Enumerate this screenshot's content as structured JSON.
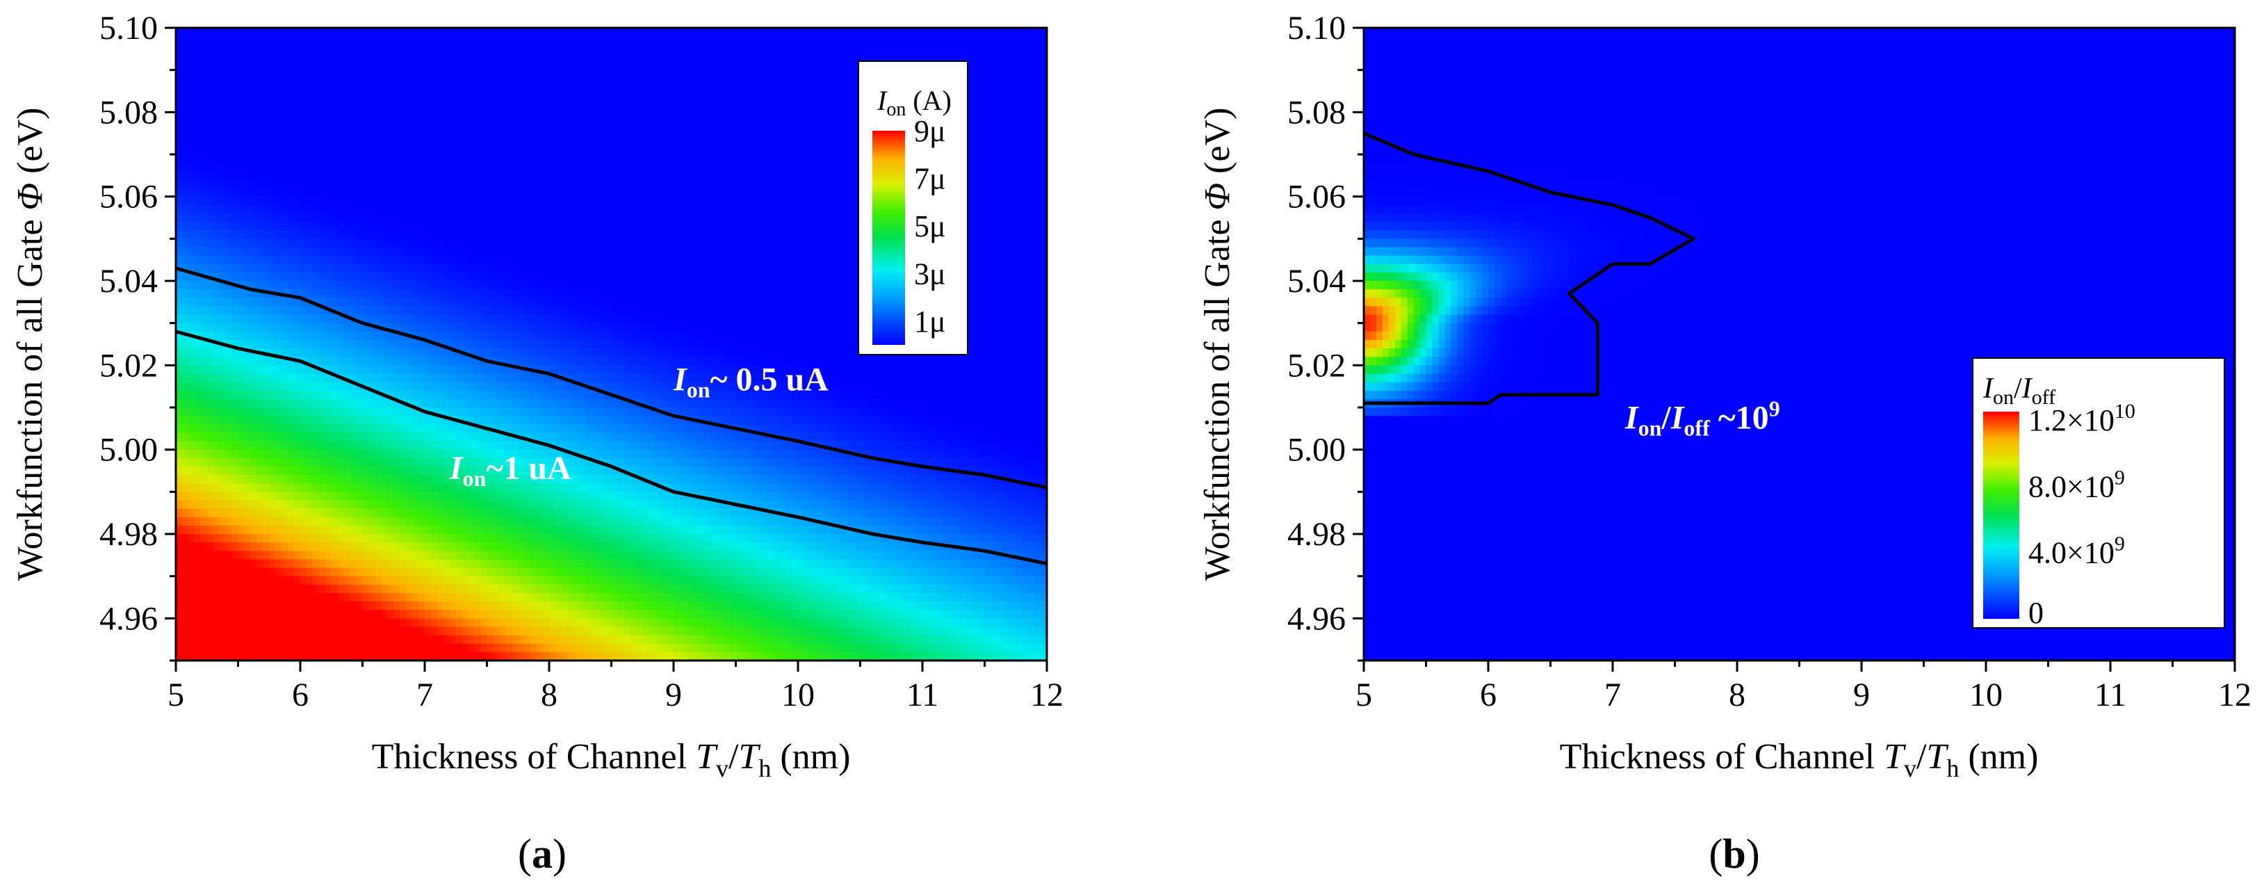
{
  "chart_data": [
    {
      "type": "heatmap",
      "panel_label": "a",
      "xlabel": {
        "prefix": "Thickness of Channel ",
        "t1": "T",
        "s1": "v",
        "slash": "/",
        "t2": "T",
        "s2": "h",
        "suffix": " (nm)"
      },
      "ylabel": {
        "prefix": "Workfunction of all Gate ",
        "sym": "Φ",
        "suffix": " (eV)"
      },
      "xlim": [
        5,
        12
      ],
      "ylim": [
        4.95,
        5.1
      ],
      "x_ticks": [
        "5",
        "6",
        "7",
        "8",
        "9",
        "10",
        "11",
        "12"
      ],
      "y_ticks": [
        "4.96",
        "4.98",
        "5.00",
        "5.02",
        "5.04",
        "5.06",
        "5.08",
        "5.10"
      ],
      "colorbar": {
        "title": {
          "sym": "I",
          "sub": "on",
          "unit": " (A)"
        },
        "range": [
          0,
          9
        ],
        "labels": [
          {
            "v": 9,
            "t": "9μ"
          },
          {
            "v": 7,
            "t": "7μ"
          },
          {
            "v": 5,
            "t": "5μ"
          },
          {
            "v": 3,
            "t": "3μ"
          },
          {
            "v": 1,
            "t": "1μ"
          }
        ]
      },
      "contours": [
        {
          "level": "0.5 uA",
          "points": [
            [
              5.0,
              5.043
            ],
            [
              5.6,
              5.038
            ],
            [
              6.0,
              5.036
            ],
            [
              6.5,
              5.03
            ],
            [
              7.0,
              5.026
            ],
            [
              7.5,
              5.021
            ],
            [
              8.0,
              5.018
            ],
            [
              8.5,
              5.013
            ],
            [
              9.0,
              5.008
            ],
            [
              9.5,
              5.005
            ],
            [
              10.0,
              5.002
            ],
            [
              10.6,
              4.998
            ],
            [
              11.0,
              4.996
            ],
            [
              11.5,
              4.994
            ],
            [
              12.0,
              4.991
            ]
          ]
        },
        {
          "level": "1 uA",
          "points": [
            [
              5.0,
              5.028
            ],
            [
              5.5,
              5.024
            ],
            [
              6.0,
              5.021
            ],
            [
              6.5,
              5.015
            ],
            [
              7.0,
              5.009
            ],
            [
              7.5,
              5.005
            ],
            [
              8.0,
              5.001
            ],
            [
              8.5,
              4.996
            ],
            [
              9.0,
              4.99
            ],
            [
              9.5,
              4.987
            ],
            [
              10.0,
              4.984
            ],
            [
              10.6,
              4.98
            ],
            [
              11.0,
              4.978
            ],
            [
              11.5,
              4.976
            ],
            [
              12.0,
              4.973
            ]
          ]
        }
      ],
      "annotations": [
        {
          "sym": "I",
          "sub": "on",
          "text": "~ 0.5 uA",
          "at": [
            9.0,
            5.014
          ]
        },
        {
          "sym": "I",
          "sub": "on",
          "text": "~1 uA",
          "at": [
            7.2,
            4.993
          ]
        }
      ]
    },
    {
      "type": "heatmap",
      "panel_label": "b",
      "xlabel": {
        "prefix": "Thickness of Channel ",
        "t1": "T",
        "s1": "v",
        "slash": "/",
        "t2": "T",
        "s2": "h",
        "suffix": " (nm)"
      },
      "ylabel": {
        "prefix": "Workfunction of all Gate ",
        "sym": "Φ",
        "suffix": " (eV)"
      },
      "xlim": [
        5,
        12
      ],
      "ylim": [
        4.95,
        5.1
      ],
      "x_ticks": [
        "5",
        "6",
        "7",
        "8",
        "9",
        "10",
        "11",
        "12"
      ],
      "y_ticks": [
        "4.96",
        "4.98",
        "5.00",
        "5.02",
        "5.04",
        "5.06",
        "5.08",
        "5.10"
      ],
      "colorbar": {
        "title": {
          "s1": "I",
          "b1": "on",
          "slash": "/",
          "s2": "I",
          "b2": "off"
        },
        "range": [
          0,
          12.5
        ],
        "labels": [
          {
            "v": 12,
            "m": "1.2×10",
            "e": "10"
          },
          {
            "v": 8,
            "m": "8.0×10",
            "e": "9"
          },
          {
            "v": 4,
            "m": "4.0×10",
            "e": "9"
          },
          {
            "v": 0,
            "m": "0",
            "e": ""
          }
        ]
      },
      "peak": {
        "x": 5.0,
        "y": 5.03,
        "value": 12.2
      },
      "contours": [
        {
          "level": "10^9",
          "points": [
            [
              5.0,
              5.075
            ],
            [
              5.4,
              5.07
            ],
            [
              6.0,
              5.066
            ],
            [
              6.5,
              5.061
            ],
            [
              7.0,
              5.058
            ],
            [
              7.3,
              5.055
            ],
            [
              7.65,
              5.05
            ],
            [
              7.3,
              5.044
            ],
            [
              7.0,
              5.044
            ],
            [
              6.65,
              5.037
            ],
            [
              6.88,
              5.03
            ],
            [
              6.88,
              5.013
            ],
            [
              6.1,
              5.013
            ],
            [
              6.0,
              5.011
            ],
            [
              5.0,
              5.011
            ]
          ]
        }
      ],
      "annotations": [
        {
          "s1": "I",
          "b1": "on",
          "slash": "/",
          "s2": "I",
          "b2": "off",
          "text": " ~10",
          "exp": "9",
          "at": [
            7.1,
            5.005
          ]
        }
      ]
    }
  ]
}
